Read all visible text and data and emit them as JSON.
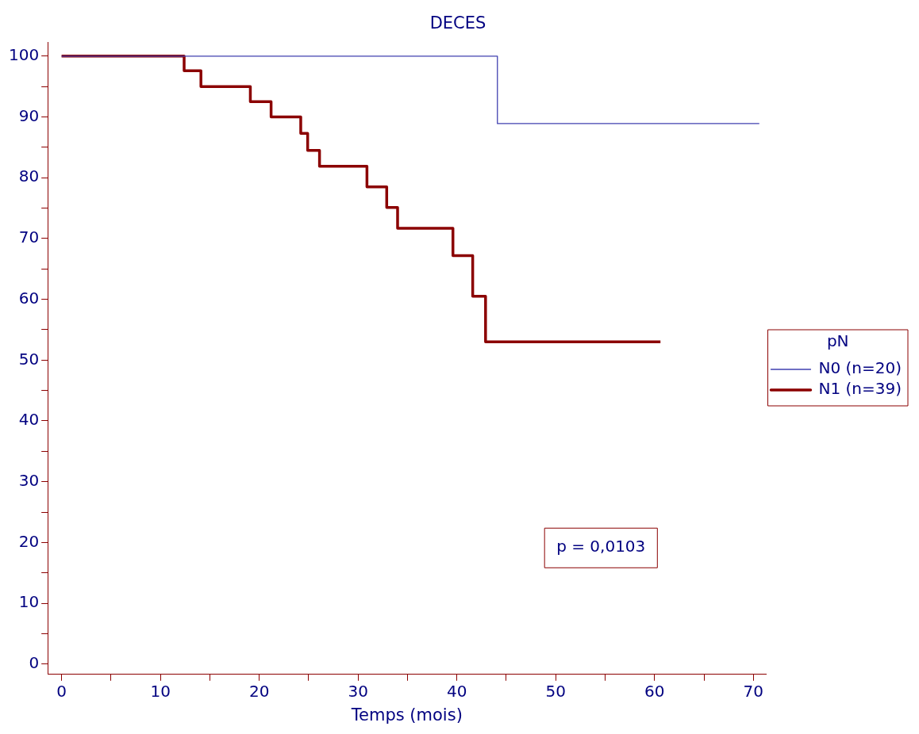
{
  "chart_data": {
    "type": "step",
    "title": "DECES",
    "xlabel": "Temps (mois)",
    "legend_title": "pN",
    "legend": "right",
    "xlim": [
      -1.4,
      71.3
    ],
    "ylim": [
      -1.7,
      102.3
    ],
    "xticks": [
      0,
      {
        "value": 5,
        "label": null
      },
      10,
      {
        "value": 15,
        "label": null
      },
      20,
      {
        "value": 25,
        "label": null
      },
      30,
      {
        "value": 35,
        "label": null
      },
      40,
      {
        "value": 45,
        "label": null
      },
      50,
      {
        "value": 55,
        "label": null
      },
      60,
      {
        "value": 65,
        "label": null
      },
      70
    ],
    "yticks": [
      0,
      {
        "value": 5,
        "label": null
      },
      10,
      {
        "value": 15,
        "label": null
      },
      20,
      {
        "value": 25,
        "label": null
      },
      30,
      {
        "value": 35,
        "label": null
      },
      40,
      {
        "value": 45,
        "label": null
      },
      50,
      {
        "value": 55,
        "label": null
      },
      60,
      {
        "value": 65,
        "label": null
      },
      70,
      {
        "value": 75,
        "label": null
      },
      80,
      {
        "value": 85,
        "label": null
      },
      90,
      {
        "value": 95,
        "label": null
      },
      100
    ],
    "grid": false,
    "annotations": [
      "p = 0,0103"
    ],
    "series": [
      {
        "name": "N0 (n=20)",
        "color": "#4040b0",
        "x": [
          0,
          44.1,
          70.6
        ],
        "values": [
          100,
          88.9,
          88.9
        ]
      },
      {
        "name": "N1 (n=39)",
        "color": "#8b0000",
        "x": [
          0,
          12.4,
          14.1,
          19.1,
          21.2,
          24.2,
          24.9,
          26.1,
          30.9,
          32.9,
          34.0,
          39.6,
          41.6,
          42.9,
          60.6
        ],
        "values": [
          100,
          97.6,
          95.0,
          92.5,
          90.0,
          87.3,
          84.5,
          81.9,
          78.5,
          75.1,
          71.7,
          67.2,
          60.5,
          53.0,
          53.0
        ]
      }
    ]
  }
}
